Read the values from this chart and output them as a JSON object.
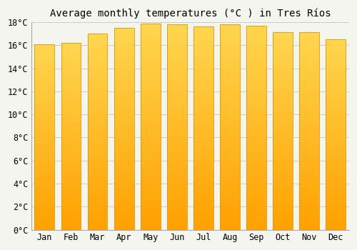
{
  "title": "Average monthly temperatures (°C ) in Tres Ríos",
  "months": [
    "Jan",
    "Feb",
    "Mar",
    "Apr",
    "May",
    "Jun",
    "Jul",
    "Aug",
    "Sep",
    "Oct",
    "Nov",
    "Dec"
  ],
  "values": [
    16.1,
    16.2,
    17.0,
    17.5,
    17.9,
    17.8,
    17.6,
    17.8,
    17.7,
    17.1,
    17.1,
    16.5
  ],
  "ylim": [
    0,
    18
  ],
  "yticks": [
    0,
    2,
    4,
    6,
    8,
    10,
    12,
    14,
    16,
    18
  ],
  "bar_color_top": "#FFD54F",
  "bar_color_bottom": "#FFA000",
  "bar_edge_color": "#E69500",
  "background_color": "#F5F5F0",
  "plot_bg_color": "#F5F5F0",
  "grid_color": "#cccccc",
  "title_fontsize": 10,
  "tick_fontsize": 8.5
}
